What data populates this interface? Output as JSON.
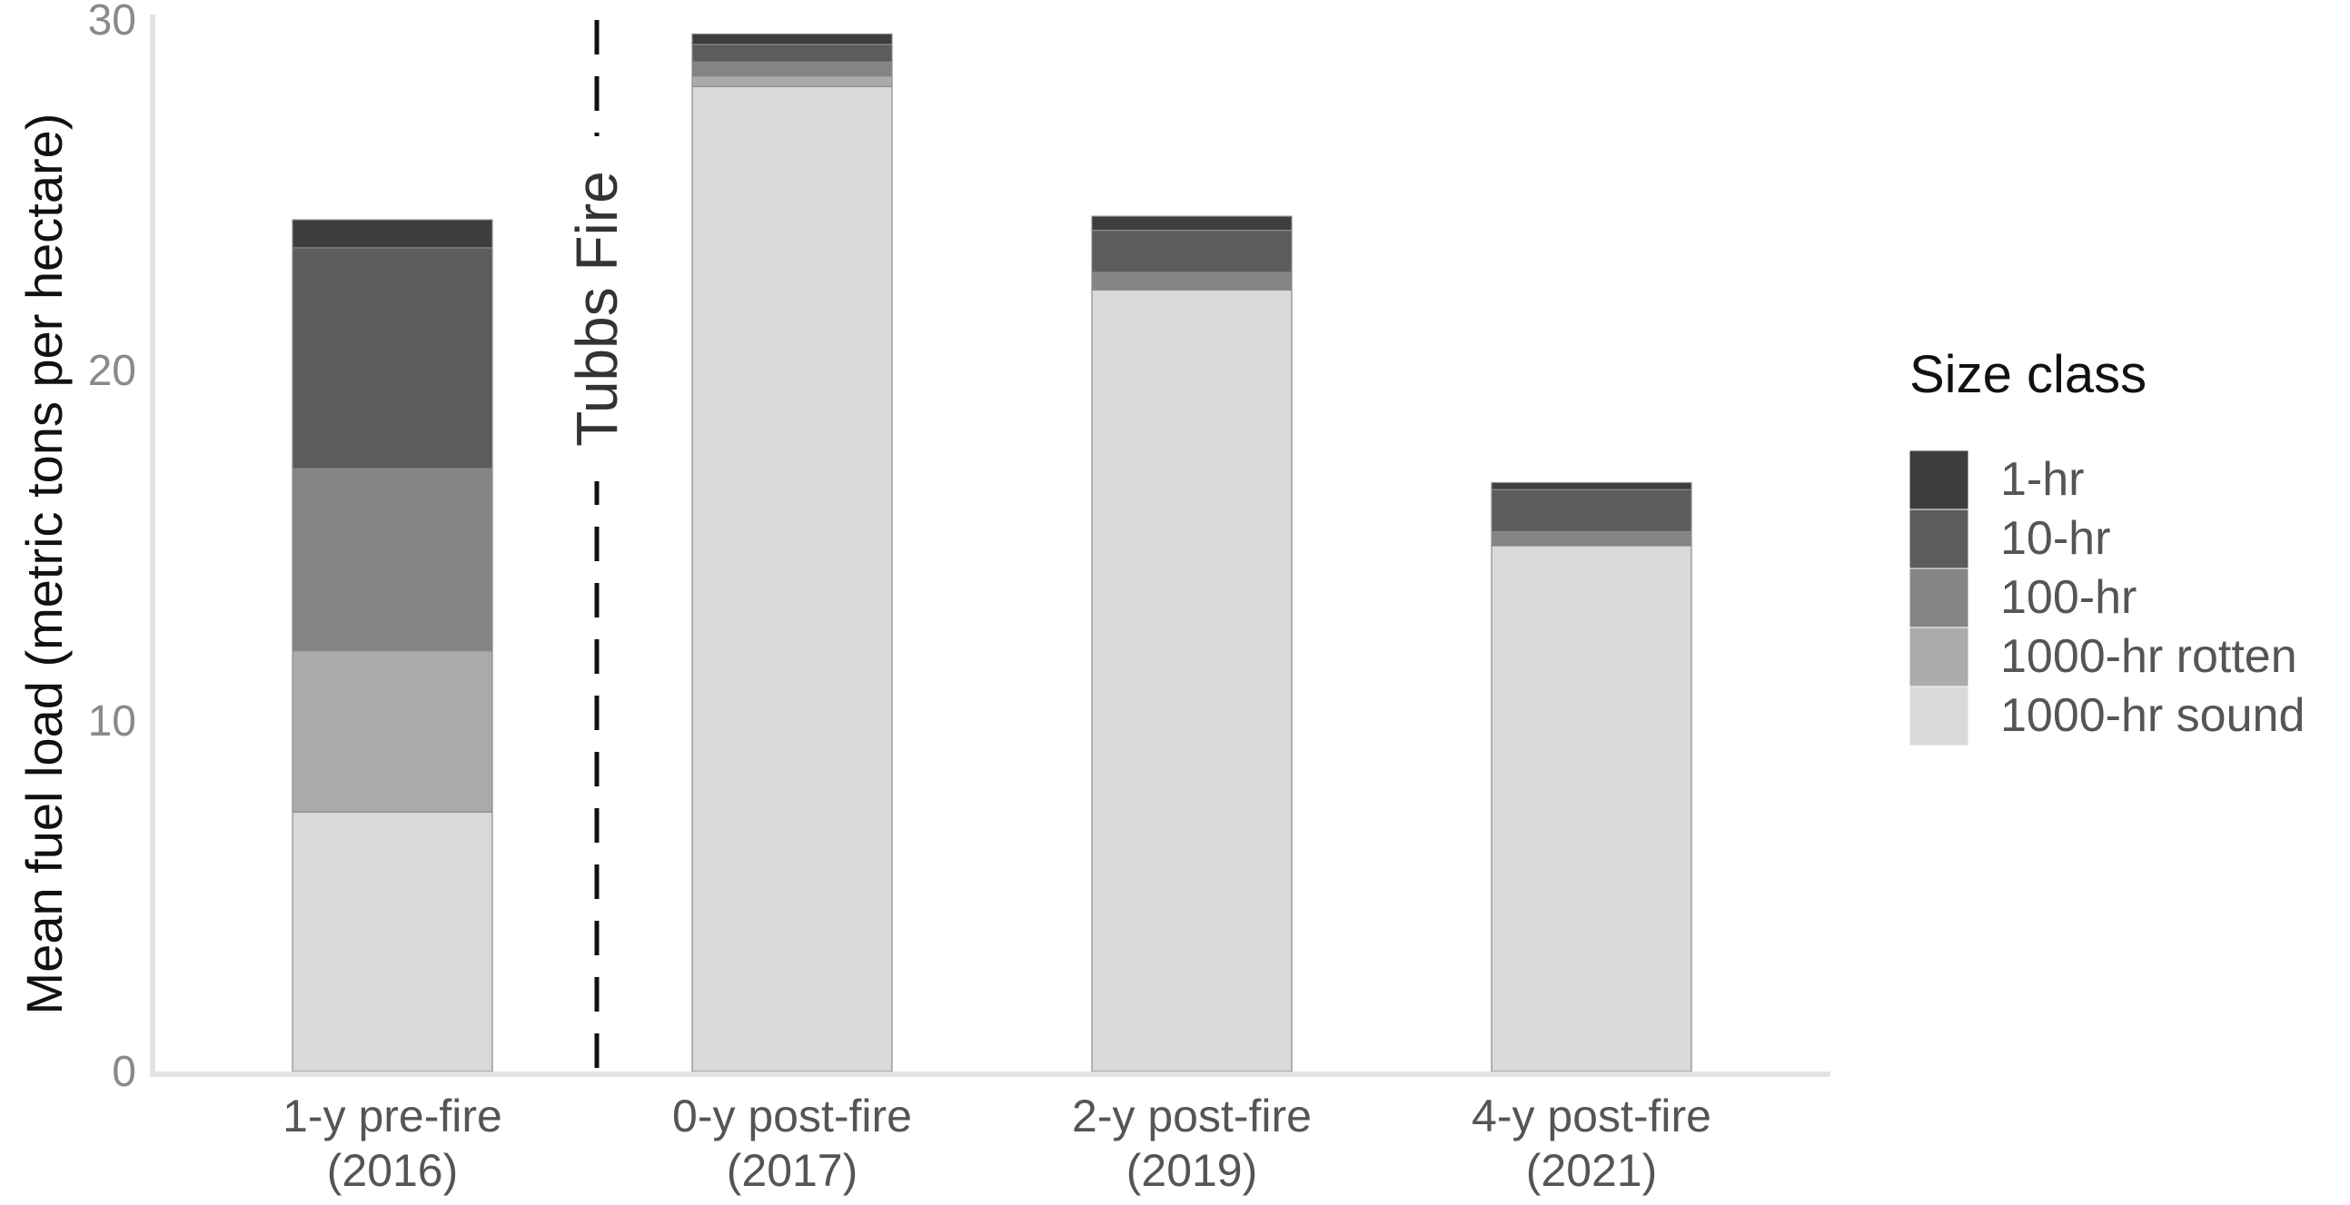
{
  "chart_data": {
    "type": "bar",
    "stacked": true,
    "categories": [
      [
        "1-y pre-fire",
        "(2016)"
      ],
      [
        "0-y post-fire",
        "(2017)"
      ],
      [
        "2-y post-fire",
        "(2019)"
      ],
      [
        "4-y post-fire",
        "(2021)"
      ]
    ],
    "series": [
      {
        "name": "1000-hr sound",
        "color": "#d9d9d9",
        "values": [
          7.4,
          28.1,
          22.3,
          15.0
        ]
      },
      {
        "name": "1000-hr rotten",
        "color": "#ababab",
        "values": [
          4.6,
          0.3,
          0.0,
          0.0
        ]
      },
      {
        "name": "100-hr",
        "color": "#848484",
        "values": [
          5.2,
          0.4,
          0.5,
          0.4
        ]
      },
      {
        "name": "10-hr",
        "color": "#5c5c5c",
        "values": [
          6.3,
          0.5,
          1.2,
          1.2
        ]
      },
      {
        "name": "1-hr",
        "color": "#3d3d3d",
        "values": [
          0.8,
          0.3,
          0.4,
          0.2
        ]
      }
    ],
    "legend_order": [
      "1-hr",
      "10-hr",
      "100-hr",
      "1000-hr rotten",
      "1000-hr sound"
    ],
    "ylabel": "Mean fuel load (metric tons per hectare)",
    "xlabel": "",
    "ylim": [
      0,
      30
    ],
    "yticks": [
      0,
      10,
      20,
      30
    ],
    "grid": false,
    "legend_title": "Size class",
    "legend_position": "right",
    "annotation": {
      "text": "Tubbs Fire",
      "line_style": "dashed",
      "between_categories": [
        0,
        1
      ]
    }
  }
}
